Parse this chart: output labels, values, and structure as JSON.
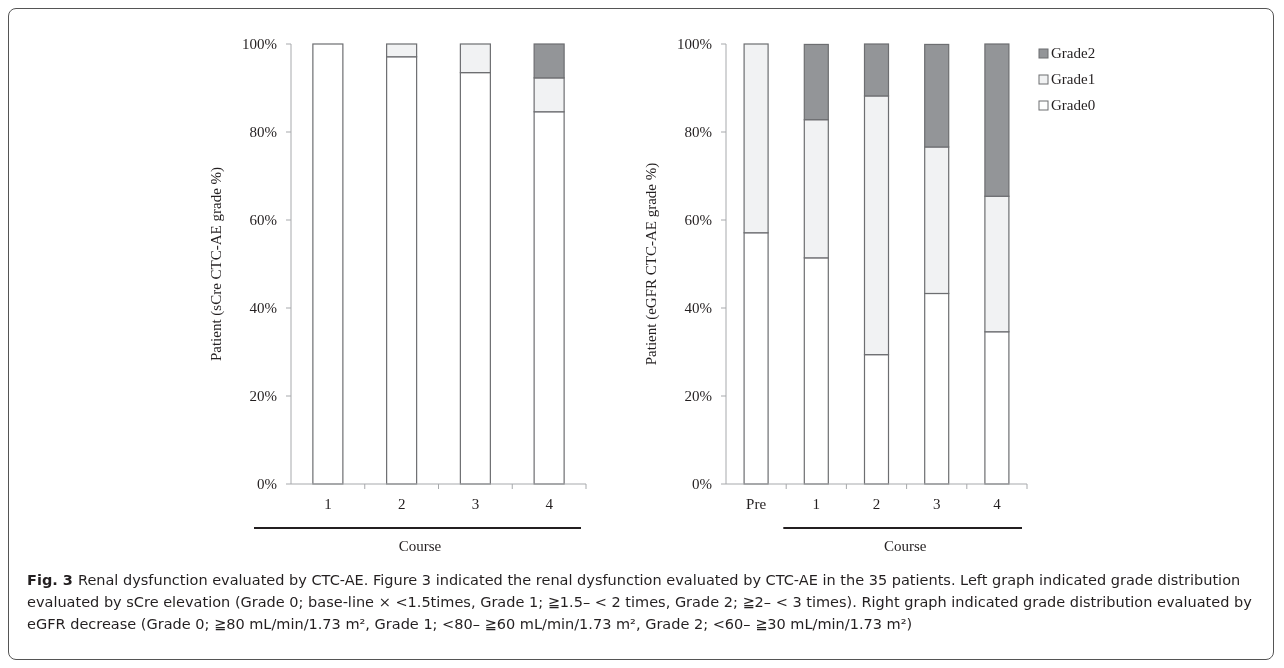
{
  "chart_data": [
    {
      "type": "bar",
      "stacked": true,
      "xlabel": "Course",
      "ylabel": "Patient (sCre CTC-AE grade %)",
      "categories": [
        "1",
        "2",
        "3",
        "4"
      ],
      "ylim": [
        0,
        100
      ],
      "yticks": [
        {
          "value": 0,
          "label": "0%"
        },
        {
          "value": 20,
          "label": "20%"
        },
        {
          "value": 40,
          "label": "40%"
        },
        {
          "value": 60,
          "label": "60%"
        },
        {
          "value": 80,
          "label": "80%"
        },
        {
          "value": 100,
          "label": "100%"
        }
      ],
      "grid": false,
      "legend": false,
      "series": [
        {
          "color": "#ffffff",
          "values": [
            100,
            97.1,
            93.5,
            84.6
          ]
        },
        {
          "color": "#f1f2f3",
          "values": [
            0,
            2.9,
            6.5,
            7.7
          ]
        },
        {
          "color": "#939598",
          "values": [
            0,
            0,
            0,
            7.7
          ]
        }
      ]
    },
    {
      "type": "bar",
      "stacked": true,
      "xlabel": "Course",
      "ylabel": "Patient (eGFR CTC-AE grade %)",
      "categories": [
        "Pre",
        "1",
        "2",
        "3",
        "4"
      ],
      "ylim": [
        0,
        100
      ],
      "yticks": [
        {
          "value": 0,
          "label": "0%"
        },
        {
          "value": 20,
          "label": "20%"
        },
        {
          "value": 40,
          "label": "40%"
        },
        {
          "value": 60,
          "label": "60%"
        },
        {
          "value": 80,
          "label": "80%"
        },
        {
          "value": 100,
          "label": "100%"
        }
      ],
      "grid": false,
      "legend": "right",
      "series": [
        {
          "name": "Grade0",
          "color": "#ffffff",
          "values": [
            57.1,
            51.4,
            29.4,
            43.3,
            34.6
          ]
        },
        {
          "name": "Grade1",
          "color": "#f1f2f3",
          "values": [
            42.9,
            31.4,
            58.8,
            33.3,
            30.8
          ]
        },
        {
          "name": "Grade2",
          "color": "#939598",
          "values": [
            0,
            17.1,
            11.8,
            23.3,
            34.6
          ]
        }
      ],
      "annotations": [
        "Fig. 3",
        "Renal dysfunction evaluated by CTC-AE. Figure 3 indicated the renal dysfunction evaluated by CTC-AE in the 35 patients. Left graph indicated grade distribution evaluated by sCre elevation (Grade 0; base-line × <1.5times, Grade 1; ≧1.5– < 2 times, Grade 2; ≧2– < 3 times). Right graph indicated grade distribution evaluated by eGFR decrease (Grade 0; ≧80 mL/min/1.73 m², Grade 1; <80– ≧60 mL/min/1.73 m², Grade 2; <60– ≧30 mL/min/1.73 m²)"
      ]
    }
  ]
}
